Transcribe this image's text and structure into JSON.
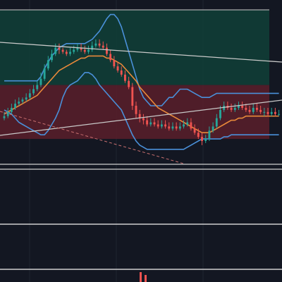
{
  "chart_data": {
    "type": "candlestick",
    "x_index": [
      0,
      1,
      2,
      3,
      4,
      5,
      6,
      7,
      8,
      9,
      10,
      11,
      12,
      13,
      14,
      15,
      16,
      17,
      18,
      19,
      20,
      21,
      22,
      23,
      24,
      25,
      26,
      27,
      28,
      29,
      30,
      31,
      32,
      33,
      34,
      35,
      36,
      37,
      38,
      39,
      40,
      41,
      42,
      43,
      44,
      45,
      46,
      47,
      48,
      49,
      50,
      51,
      52,
      53,
      54,
      55,
      56,
      57,
      58,
      59,
      60,
      61,
      62,
      63,
      64,
      65,
      66,
      67,
      68,
      69,
      70,
      71,
      72,
      73,
      74,
      75
    ],
    "candles": {
      "open": [
        48,
        49,
        51,
        53,
        55,
        56,
        57,
        58,
        60,
        62,
        64,
        67,
        72,
        76,
        79,
        82,
        81,
        80,
        79,
        80,
        81,
        82,
        81,
        80,
        81,
        83,
        84,
        83,
        82,
        79,
        76,
        73,
        71,
        69,
        66,
        63,
        54,
        50,
        48,
        47,
        45,
        46,
        45,
        44,
        45,
        44,
        43,
        44,
        43,
        44,
        45,
        46,
        43,
        41,
        39,
        37,
        38,
        42,
        44,
        48,
        52,
        54,
        53,
        52,
        53,
        54,
        53,
        52,
        51,
        53,
        52,
        51,
        51,
        50,
        51,
        50
      ],
      "close": [
        49,
        51,
        53,
        55,
        56,
        57,
        58,
        60,
        62,
        64,
        67,
        72,
        76,
        79,
        82,
        81,
        80,
        79,
        80,
        81,
        82,
        81,
        80,
        81,
        83,
        84,
        83,
        82,
        79,
        76,
        73,
        71,
        69,
        66,
        63,
        54,
        50,
        48,
        47,
        45,
        46,
        45,
        44,
        45,
        44,
        43,
        44,
        43,
        44,
        45,
        46,
        43,
        41,
        39,
        37,
        38,
        42,
        44,
        48,
        52,
        54,
        53,
        52,
        53,
        54,
        53,
        52,
        51,
        53,
        52,
        51,
        51,
        50,
        51,
        50,
        50
      ],
      "high": [
        51,
        53,
        55,
        57,
        58,
        58,
        60,
        62,
        64,
        66,
        70,
        74,
        78,
        81,
        84,
        84,
        82,
        81,
        82,
        83,
        84,
        84,
        83,
        83,
        85,
        86,
        86,
        85,
        84,
        81,
        78,
        75,
        73,
        71,
        68,
        65,
        56,
        52,
        50,
        49,
        48,
        48,
        47,
        47,
        47,
        46,
        46,
        46,
        46,
        47,
        48,
        48,
        45,
        43,
        41,
        40,
        44,
        46,
        50,
        54,
        56,
        56,
        55,
        55,
        56,
        56,
        55,
        54,
        55,
        55,
        54,
        53,
        53,
        53,
        53,
        52
      ],
      "low": [
        47,
        48,
        50,
        52,
        54,
        55,
        56,
        57,
        59,
        61,
        63,
        66,
        71,
        75,
        78,
        79,
        79,
        78,
        78,
        79,
        80,
        80,
        79,
        79,
        80,
        82,
        82,
        81,
        78,
        75,
        72,
        70,
        68,
        65,
        62,
        52,
        48,
        46,
        45,
        44,
        44,
        44,
        43,
        43,
        43,
        42,
        42,
        42,
        42,
        43,
        44,
        42,
        40,
        38,
        35,
        36,
        37,
        41,
        43,
        47,
        51,
        52,
        51,
        51,
        52,
        52,
        51,
        50,
        50,
        51,
        50,
        49,
        49,
        49,
        49,
        49
      ]
    },
    "indicators": {
      "moving_average": [
        50,
        51,
        52,
        53,
        54,
        55,
        56,
        57,
        58,
        59,
        61,
        63,
        65,
        67,
        69,
        71,
        72,
        73,
        74,
        75,
        76,
        77,
        77,
        78,
        78,
        78,
        78,
        78,
        77,
        77,
        76,
        75,
        74,
        72,
        70,
        68,
        66,
        63,
        61,
        59,
        57,
        55,
        53,
        52,
        51,
        50,
        49,
        48,
        47,
        46,
        45,
        44,
        43,
        42,
        41,
        41,
        41,
        42,
        43,
        44,
        45,
        46,
        47,
        47,
        48,
        48,
        49,
        49,
        49,
        49,
        49,
        49,
        49,
        49,
        49,
        49
      ],
      "bollinger_upper": [
        66,
        66,
        66,
        66,
        66,
        66,
        66,
        66,
        66,
        66,
        68,
        72,
        75,
        78,
        80,
        82,
        83,
        84,
        84,
        84,
        84,
        84,
        84,
        85,
        86,
        88,
        90,
        93,
        96,
        98,
        98,
        96,
        92,
        86,
        80,
        74,
        68,
        62,
        58,
        56,
        54,
        54,
        54,
        54,
        56,
        58,
        58,
        60,
        62,
        62,
        62,
        61,
        60,
        59,
        58,
        58,
        58,
        59,
        60,
        60,
        60,
        60,
        60,
        60,
        60,
        60,
        60,
        60,
        60,
        60,
        60,
        60,
        60,
        60,
        60,
        60
      ],
      "bollinger_lower": [
        52,
        51,
        50,
        48,
        46,
        45,
        44,
        43,
        42,
        41,
        40,
        40,
        42,
        45,
        48,
        52,
        58,
        62,
        64,
        65,
        66,
        68,
        70,
        70,
        69,
        67,
        64,
        62,
        60,
        58,
        56,
        54,
        52,
        48,
        44,
        40,
        37,
        35,
        34,
        33,
        33,
        33,
        33,
        33,
        33,
        33,
        33,
        33,
        33,
        33,
        34,
        35,
        36,
        37,
        38,
        38,
        38,
        38,
        38,
        38,
        39,
        39,
        40,
        40,
        40,
        40,
        40,
        40,
        40,
        40,
        40,
        40,
        40,
        40,
        40,
        40
      ]
    },
    "zones": [
      {
        "type": "profit",
        "from": 64,
        "to": 100,
        "color": "#103f37"
      },
      {
        "type": "loss",
        "from": 38,
        "to": 64,
        "color": "#5a1f2a"
      }
    ],
    "ylim": [
      20,
      105
    ],
    "grid": true,
    "colors": {
      "up": "#26a69a",
      "down": "#ef5350",
      "ma": "#e8893a",
      "bb": "#4a90d9",
      "background": "#131722",
      "grid": "#1f2430",
      "trend": "#c9c9c9",
      "levels": "#cfcfcf"
    }
  }
}
